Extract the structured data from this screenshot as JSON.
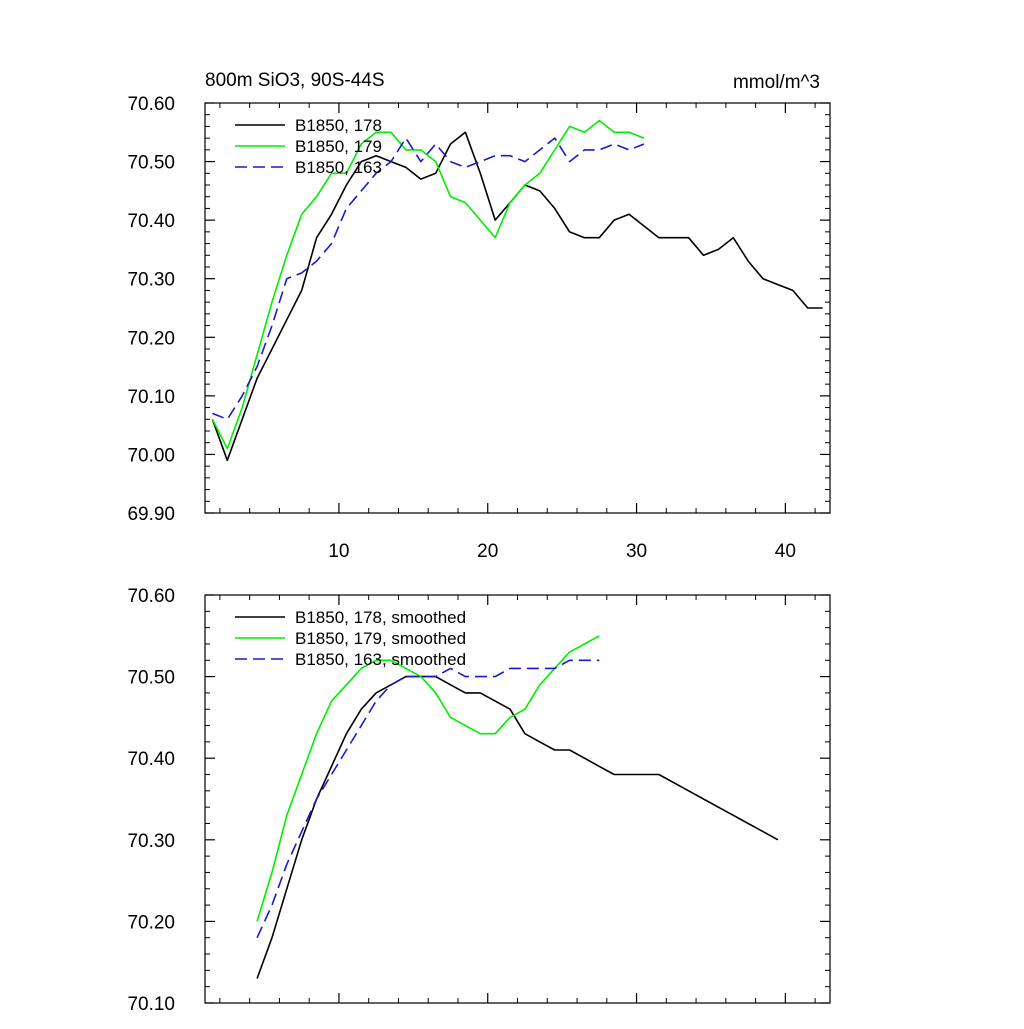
{
  "chart_data": [
    {
      "type": "line",
      "title": "800m SiO3, 90S-44S",
      "units": "mmol/m^3",
      "xlim": [
        1,
        43
      ],
      "ylim": [
        69.9,
        70.6
      ],
      "xticks": [
        10,
        20,
        30,
        40
      ],
      "xtick_labels": [
        "10",
        "20",
        "30",
        "40"
      ],
      "yticks": [
        69.9,
        70.0,
        70.1,
        70.2,
        70.3,
        70.4,
        70.5,
        70.6
      ],
      "ytick_labels": [
        "69.90",
        "70.00",
        "70.10",
        "70.20",
        "70.30",
        "70.40",
        "70.50",
        "70.60"
      ],
      "legend_position": "top-left",
      "series": [
        {
          "name": "B1850, 178",
          "color": "#000000",
          "dash": "solid",
          "x": [
            1.5,
            2.5,
            3.5,
            4.5,
            5.5,
            6.5,
            7.5,
            8.5,
            9.5,
            10.5,
            11.5,
            12.5,
            13.5,
            14.5,
            15.5,
            16.5,
            17.5,
            18.5,
            19.5,
            20.5,
            21.5,
            22.5,
            23.5,
            24.5,
            25.5,
            26.5,
            27.5,
            28.5,
            29.5,
            30.5,
            31.5,
            32.5,
            33.5,
            34.5,
            35.5,
            36.5,
            37.5,
            38.5,
            39.5,
            40.5,
            41.5,
            42.5
          ],
          "values": [
            70.06,
            69.99,
            70.06,
            70.13,
            70.18,
            70.23,
            70.28,
            70.37,
            70.41,
            70.46,
            70.5,
            70.51,
            70.5,
            70.49,
            70.47,
            70.48,
            70.53,
            70.55,
            70.48,
            70.4,
            70.43,
            70.46,
            70.45,
            70.42,
            70.38,
            70.37,
            70.37,
            70.4,
            70.41,
            70.39,
            70.37,
            70.37,
            70.37,
            70.34,
            70.35,
            70.37,
            70.33,
            70.3,
            70.29,
            70.28,
            70.25,
            70.25
          ]
        },
        {
          "name": "B1850, 179",
          "color": "#00ee00",
          "dash": "solid",
          "x": [
            1.5,
            2.5,
            3.5,
            4.5,
            5.5,
            6.5,
            7.5,
            8.5,
            9.5,
            10.5,
            11.5,
            12.5,
            13.5,
            14.5,
            15.5,
            16.5,
            17.5,
            18.5,
            19.5,
            20.5,
            21.5,
            22.5,
            23.5,
            24.5,
            25.5,
            26.5,
            27.5,
            28.5,
            29.5,
            30.5
          ],
          "values": [
            70.06,
            70.01,
            70.08,
            70.17,
            70.26,
            70.34,
            70.41,
            70.44,
            70.48,
            70.48,
            70.53,
            70.55,
            70.55,
            70.52,
            70.52,
            70.5,
            70.44,
            70.43,
            70.4,
            70.37,
            70.43,
            70.46,
            70.48,
            70.52,
            70.56,
            70.55,
            70.57,
            70.55,
            70.55,
            70.54
          ]
        },
        {
          "name": "B1850, 163",
          "color": "#1a1acc",
          "dash": "dashed",
          "x": [
            1.5,
            2.5,
            3.5,
            4.5,
            5.5,
            6.5,
            7.5,
            8.5,
            9.5,
            10.5,
            11.5,
            12.5,
            13.5,
            14.5,
            15.5,
            16.5,
            17.5,
            18.5,
            19.5,
            20.5,
            21.5,
            22.5,
            23.5,
            24.5,
            25.5,
            26.5,
            27.5,
            28.5,
            29.5,
            30.5
          ],
          "values": [
            70.07,
            70.06,
            70.1,
            70.15,
            70.22,
            70.3,
            70.31,
            70.33,
            70.36,
            70.42,
            70.45,
            70.48,
            70.5,
            70.54,
            70.5,
            70.53,
            70.5,
            70.49,
            70.5,
            70.51,
            70.51,
            70.5,
            70.52,
            70.54,
            70.5,
            70.52,
            70.52,
            70.53,
            70.52,
            70.53
          ]
        }
      ]
    },
    {
      "type": "line",
      "title": "",
      "xlim": [
        1,
        43
      ],
      "ylim": [
        70.1,
        70.6
      ],
      "xticks": [
        10,
        20,
        30,
        40
      ],
      "xtick_labels": [
        "",
        "",
        "",
        ""
      ],
      "yticks": [
        70.1,
        70.2,
        70.3,
        70.4,
        70.5,
        70.6
      ],
      "ytick_labels": [
        "70.10",
        "70.20",
        "70.30",
        "70.40",
        "70.50",
        "70.60"
      ],
      "legend_position": "top-left",
      "series": [
        {
          "name": "B1850, 178, smoothed",
          "color": "#000000",
          "dash": "solid",
          "x": [
            4.5,
            5.5,
            6.5,
            7.5,
            8.5,
            9.5,
            10.5,
            11.5,
            12.5,
            13.5,
            14.5,
            15.5,
            16.5,
            17.5,
            18.5,
            19.5,
            20.5,
            21.5,
            22.5,
            23.5,
            24.5,
            25.5,
            26.5,
            27.5,
            28.5,
            29.5,
            30.5,
            31.5,
            32.5,
            33.5,
            34.5,
            35.5,
            36.5,
            37.5,
            38.5,
            39.5
          ],
          "values": [
            70.13,
            70.18,
            70.24,
            70.3,
            70.35,
            70.39,
            70.43,
            70.46,
            70.48,
            70.49,
            70.5,
            70.5,
            70.5,
            70.49,
            70.48,
            70.48,
            70.47,
            70.46,
            70.43,
            70.42,
            70.41,
            70.41,
            70.4,
            70.39,
            70.38,
            70.38,
            70.38,
            70.38,
            70.37,
            70.36,
            70.35,
            70.34,
            70.33,
            70.32,
            70.31,
            70.3
          ]
        },
        {
          "name": "B1850, 179, smoothed",
          "color": "#00ee00",
          "dash": "solid",
          "x": [
            4.5,
            5.5,
            6.5,
            7.5,
            8.5,
            9.5,
            10.5,
            11.5,
            12.5,
            13.5,
            14.5,
            15.5,
            16.5,
            17.5,
            18.5,
            19.5,
            20.5,
            21.5,
            22.5,
            23.5,
            24.5,
            25.5,
            26.5,
            27.5
          ],
          "values": [
            70.2,
            70.26,
            70.33,
            70.38,
            70.43,
            70.47,
            70.49,
            70.51,
            70.52,
            70.52,
            70.51,
            70.5,
            70.48,
            70.45,
            70.44,
            70.43,
            70.43,
            70.45,
            70.46,
            70.49,
            70.51,
            70.53,
            70.54,
            70.55
          ]
        },
        {
          "name": "B1850, 163, smoothed",
          "color": "#1a1acc",
          "dash": "dashed",
          "x": [
            4.5,
            5.5,
            6.5,
            7.5,
            8.5,
            9.5,
            10.5,
            11.5,
            12.5,
            13.5,
            14.5,
            15.5,
            16.5,
            17.5,
            18.5,
            19.5,
            20.5,
            21.5,
            22.5,
            23.5,
            24.5,
            25.5,
            26.5,
            27.5
          ],
          "values": [
            70.18,
            70.22,
            70.27,
            70.31,
            70.35,
            70.38,
            70.41,
            70.44,
            70.47,
            70.49,
            70.5,
            70.5,
            70.5,
            70.51,
            70.5,
            70.5,
            70.5,
            70.51,
            70.51,
            70.51,
            70.51,
            70.52,
            70.52,
            70.52
          ]
        }
      ]
    }
  ]
}
